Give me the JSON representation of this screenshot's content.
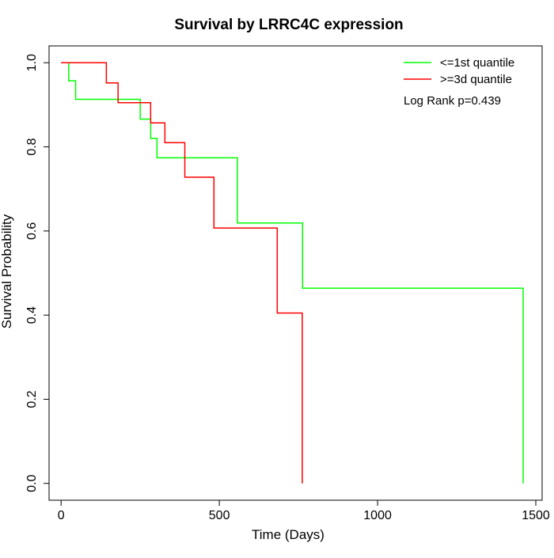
{
  "chart_data": {
    "type": "line",
    "title": "Survival by LRRC4C expression",
    "xlabel": "Time (Days)",
    "ylabel": "Survival Probability",
    "xlim": [
      -38,
      1520
    ],
    "ylim": [
      -0.04,
      1.04
    ],
    "x_ticks": [
      0,
      500,
      1000,
      1500
    ],
    "y_ticks": [
      0.0,
      0.2,
      0.4,
      0.6,
      0.8,
      1.0
    ],
    "x_tick_labels": [
      "0",
      "500",
      "1000",
      "1500"
    ],
    "y_tick_labels": [
      "0.0",
      "0.2",
      "0.4",
      "0.6",
      "0.8",
      "1.0"
    ],
    "grid": false,
    "legend_position": "top-right",
    "annotation": "Log Rank p=0.439",
    "step": true,
    "series": [
      {
        "name": "<=1st quantile",
        "color": "#00ff00",
        "x": [
          0,
          24,
          46,
          250,
          283,
          303,
          557,
          763,
          1460,
          1460
        ],
        "y": [
          1.0,
          0.957,
          0.913,
          0.866,
          0.82,
          0.774,
          0.619,
          0.464,
          0.464,
          0.0
        ]
      },
      {
        "name": ">=3d quantile",
        "color": "#ff0000",
        "x": [
          0,
          143,
          180,
          283,
          328,
          391,
          483,
          683,
          762,
          762
        ],
        "y": [
          1.0,
          0.952,
          0.905,
          0.857,
          0.81,
          0.728,
          0.607,
          0.405,
          0.405,
          0.0
        ]
      }
    ]
  }
}
